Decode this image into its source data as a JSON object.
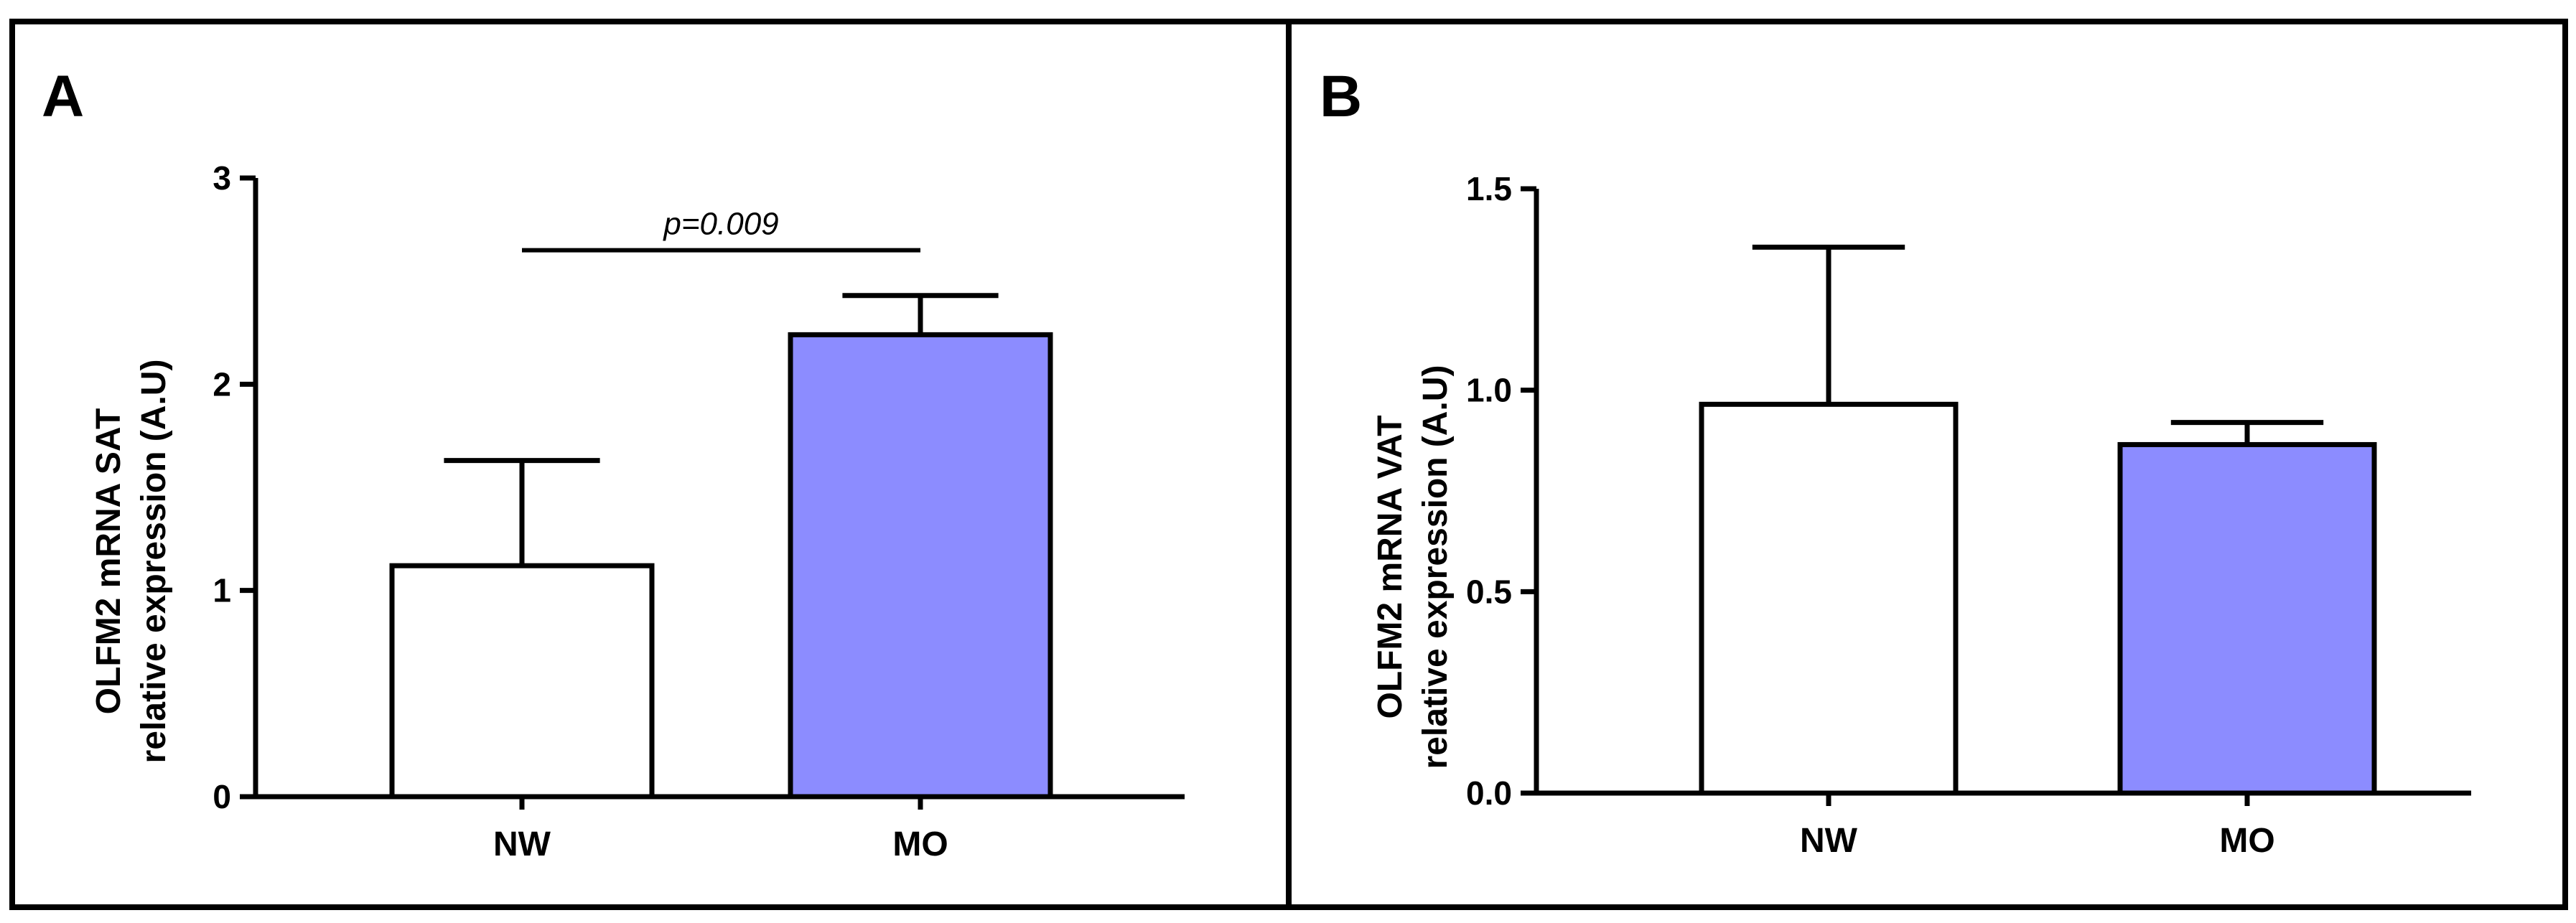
{
  "chart_data": [
    {
      "panel": "A",
      "type": "bar",
      "categories": [
        "NW",
        "MO"
      ],
      "values": [
        1.12,
        2.24
      ],
      "error_upper": [
        1.63,
        2.43
      ],
      "bar_colors": [
        "#ffffff",
        "#8c8cff"
      ],
      "ylabel_line1": "OLFM2 mRNA SAT",
      "ylabel_line2": "relative expression (A.U)",
      "ylim": [
        0,
        3
      ],
      "yticks": [
        "0",
        "1",
        "2",
        "3"
      ],
      "ytick_values": [
        0,
        1,
        2,
        3
      ],
      "significance": {
        "label": "p=0.009",
        "value": 2.65
      }
    },
    {
      "panel": "B",
      "type": "bar",
      "categories": [
        "NW",
        "MO"
      ],
      "values": [
        0.965,
        0.865
      ],
      "error_upper": [
        1.355,
        0.92
      ],
      "bar_colors": [
        "#ffffff",
        "#8c8cff"
      ],
      "ylabel_line1": "OLFM2 mRNA VAT",
      "ylabel_line2": "relative expression (A.U)",
      "ylim": [
        0,
        1.5
      ],
      "yticks": [
        "0.0",
        "0.5",
        "1.0",
        "1.5"
      ],
      "ytick_values": [
        0,
        0.5,
        1.0,
        1.5
      ]
    }
  ]
}
